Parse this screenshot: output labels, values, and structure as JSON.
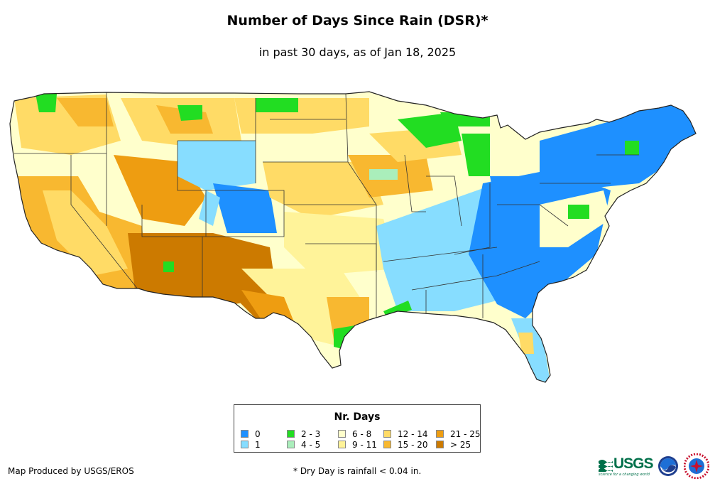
{
  "title": "Number of Days Since Rain (DSR)*",
  "subtitle": "in past 30 days, as of Jan 18, 2025",
  "legend": {
    "title": "Nr. Days",
    "items": [
      {
        "label": "0",
        "color": "#1e90ff"
      },
      {
        "label": "1",
        "color": "#87ddff"
      },
      {
        "label": "2 - 3",
        "color": "#22dd22"
      },
      {
        "label": "4 - 5",
        "color": "#aaeebb"
      },
      {
        "label": "6 - 8",
        "color": "#ffffcc"
      },
      {
        "label": "9 - 11",
        "color": "#fff399"
      },
      {
        "label": "12 - 14",
        "color": "#ffdb66"
      },
      {
        "label": "15 - 20",
        "color": "#f8b830"
      },
      {
        "label": "21 - 25",
        "color": "#ee9d11"
      },
      {
        "label": "> 25",
        "color": "#cc7a00"
      }
    ]
  },
  "footer": {
    "credit": "Map Produced by USGS/EROS",
    "note": "* Dry Day is rainfall < 0.04 in."
  },
  "logos": {
    "usgs": "USGS",
    "usgs_tagline": "science for a changing world"
  },
  "icons": [
    "usgs-logo",
    "noaa-logo",
    "nws-logo"
  ]
}
